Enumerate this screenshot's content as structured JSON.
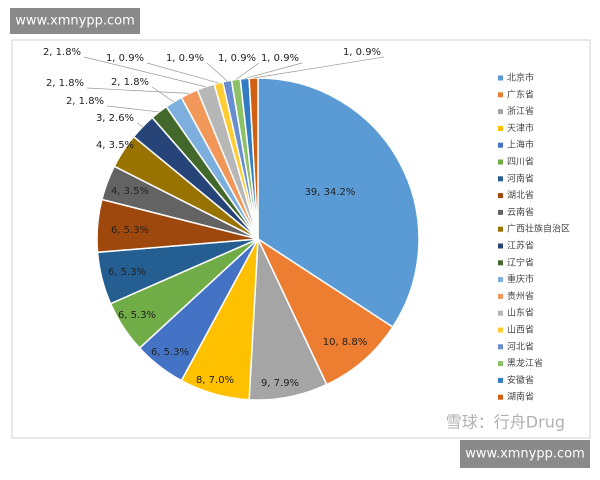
{
  "watermark_top": "www.xmnypp.com",
  "watermark_bottom": "www.xmnypp.com",
  "watermark_brand": "雪球：行舟Drug",
  "chart_data": {
    "type": "pie",
    "categories": [
      "北京市",
      "广东省",
      "浙江省",
      "天津市",
      "上海市",
      "四川省",
      "河南省",
      "湖北省",
      "云南省",
      "广西壮族自治区",
      "江苏省",
      "辽宁省",
      "重庆市",
      "贵州省",
      "山东省",
      "山西省",
      "河北省",
      "黑龙江省",
      "安徽省",
      "湖南省"
    ],
    "values": [
      39,
      10,
      9,
      8,
      6,
      6,
      6,
      6,
      4,
      4,
      3,
      2,
      2,
      2,
      2,
      1,
      1,
      1,
      1,
      1
    ],
    "value_labels": [
      "39, 34.2%",
      "10, 8.8%",
      "9, 7.9%",
      "8, 7.0%",
      "6, 5.3%",
      "6, 5.3%",
      "6, 5.3%",
      "6, 5.3%",
      "4, 3.5%",
      "4, 3.5%",
      "3, 2.6%",
      "2, 1.8%",
      "2, 1.8%",
      "2, 1.8%",
      "2, 1.8%",
      "1, 0.9%",
      "1, 0.9%",
      "1, 0.9%",
      "1, 0.9%",
      "1, 0.9%"
    ],
    "colors": [
      "#5b9bd5",
      "#ed7d31",
      "#a5a5a5",
      "#ffc000",
      "#4472c4",
      "#70ad47",
      "#255e91",
      "#9e480e",
      "#636363",
      "#997300",
      "#264478",
      "#43682b",
      "#7cafdd",
      "#f1975a",
      "#b7b7b7",
      "#ffcd33",
      "#698ed0",
      "#8cc168",
      "#327dc2",
      "#d26012"
    ],
    "legend": "right"
  }
}
